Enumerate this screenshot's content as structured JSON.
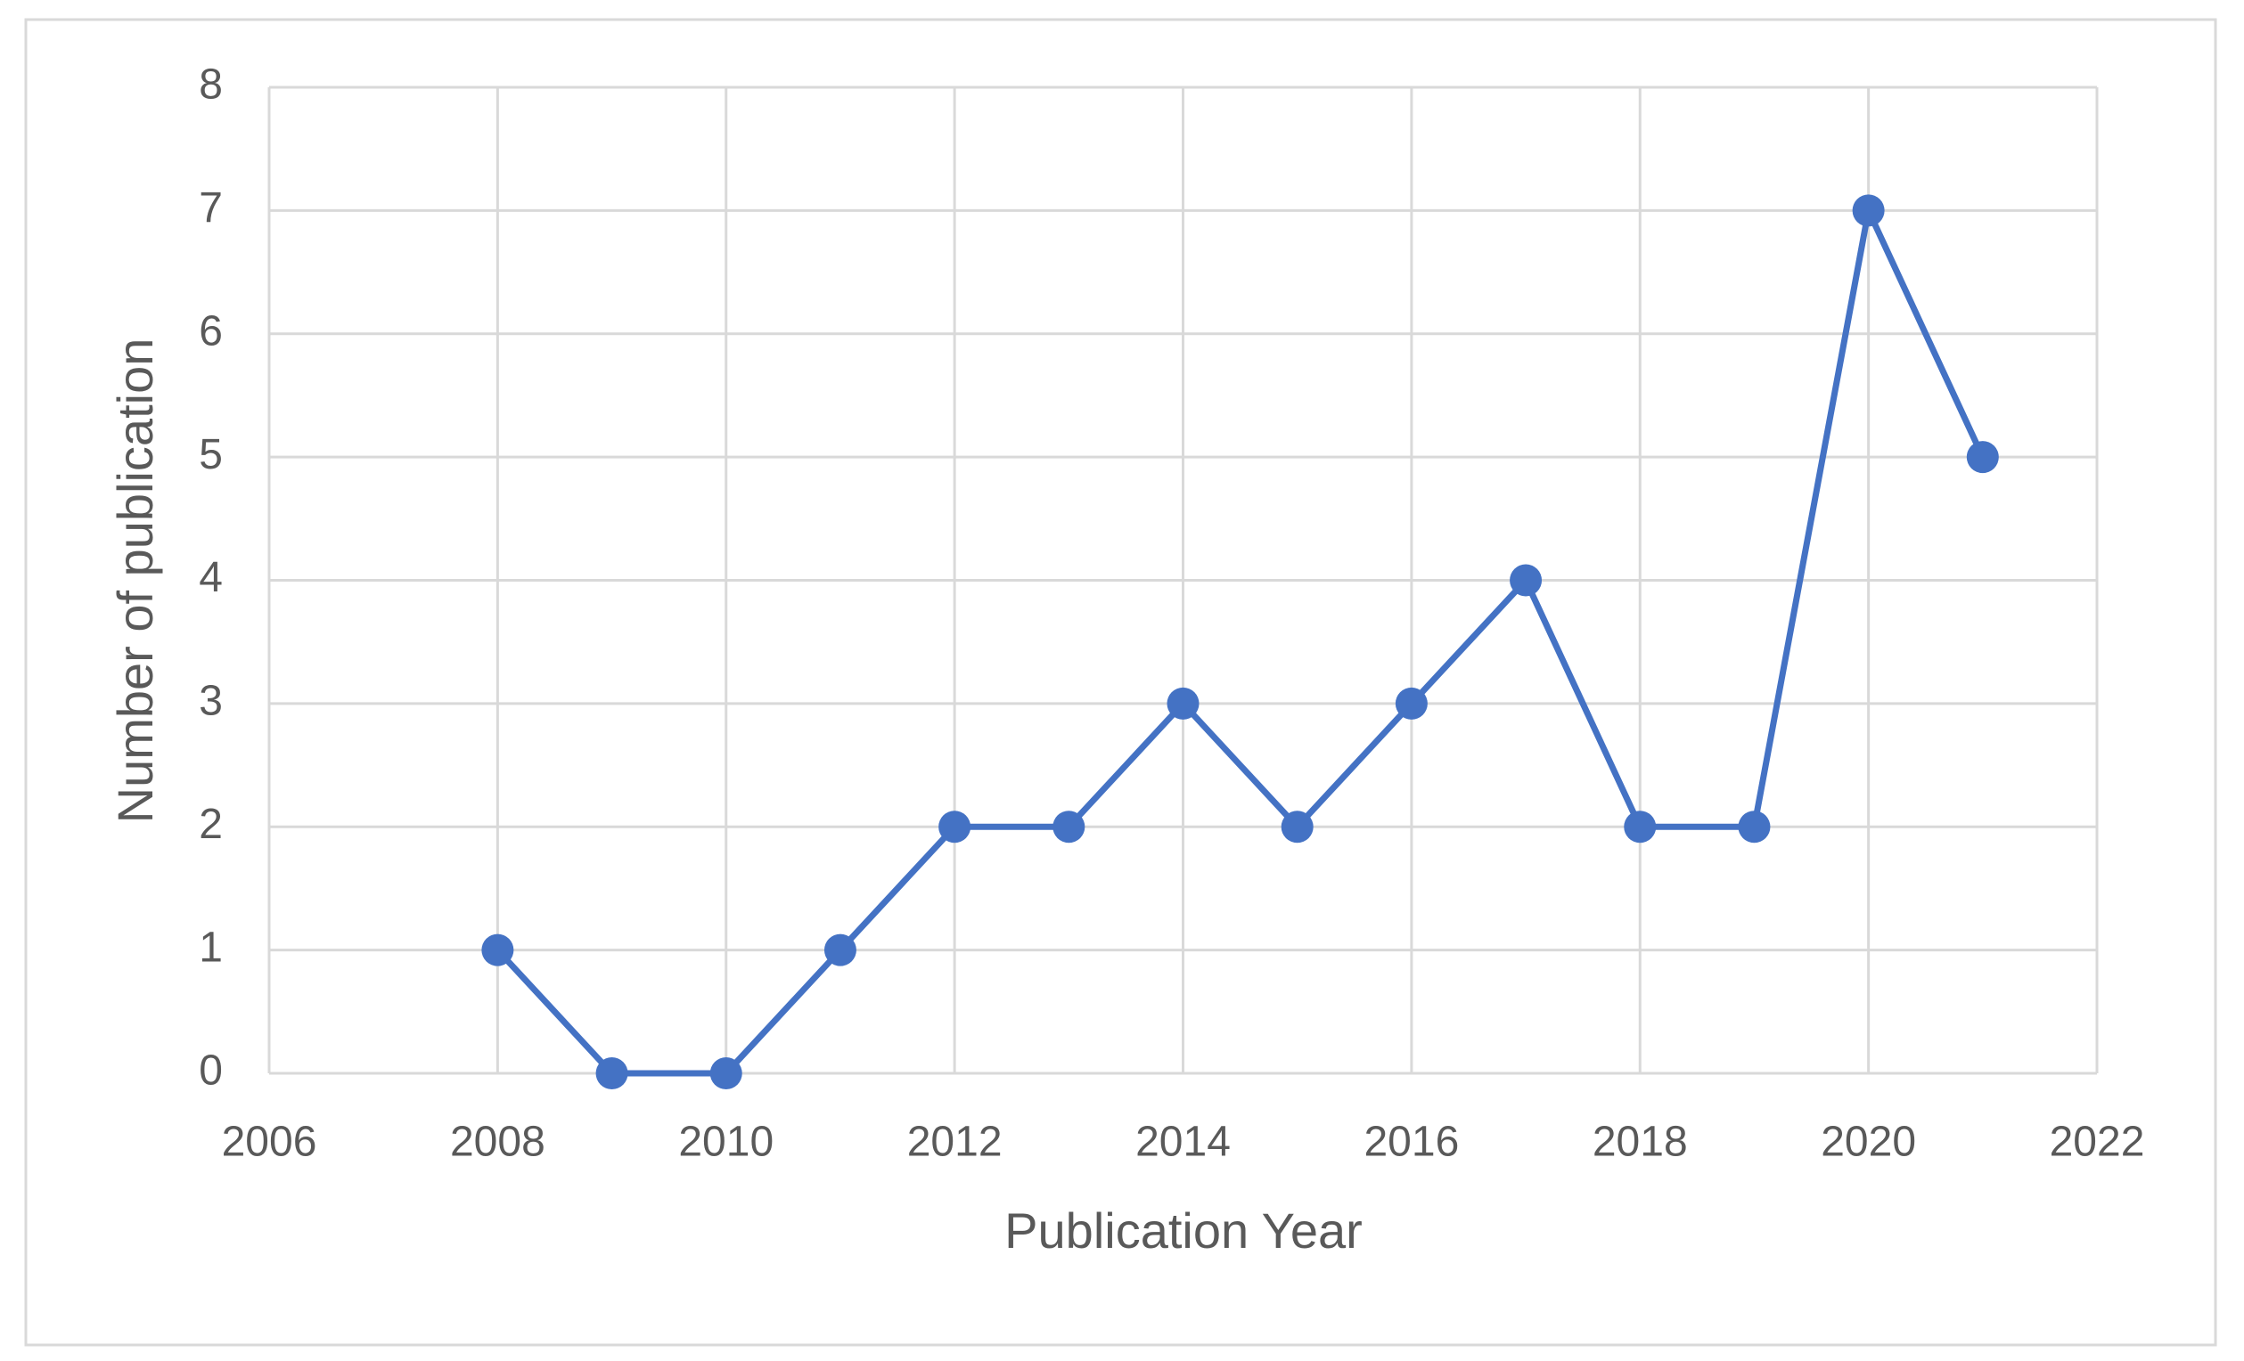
{
  "chart_data": {
    "type": "line",
    "x_label": "Publication Year",
    "y_label": "Number of publication",
    "x": [
      2008,
      2009,
      2010,
      2011,
      2012,
      2013,
      2014,
      2015,
      2016,
      2017,
      2018,
      2019,
      2020,
      2021
    ],
    "values": [
      1,
      0,
      0,
      1,
      2,
      2,
      3,
      2,
      3,
      4,
      2,
      2,
      7,
      5
    ],
    "color": "#4472c4",
    "xlim": [
      2006,
      2022
    ],
    "xticks": [
      2006,
      2008,
      2010,
      2012,
      2014,
      2016,
      2018,
      2020,
      2022
    ],
    "ylim": [
      0,
      8
    ],
    "yticks": [
      0,
      1,
      2,
      3,
      4,
      5,
      6,
      7,
      8
    ],
    "grid": true,
    "markers": true
  }
}
